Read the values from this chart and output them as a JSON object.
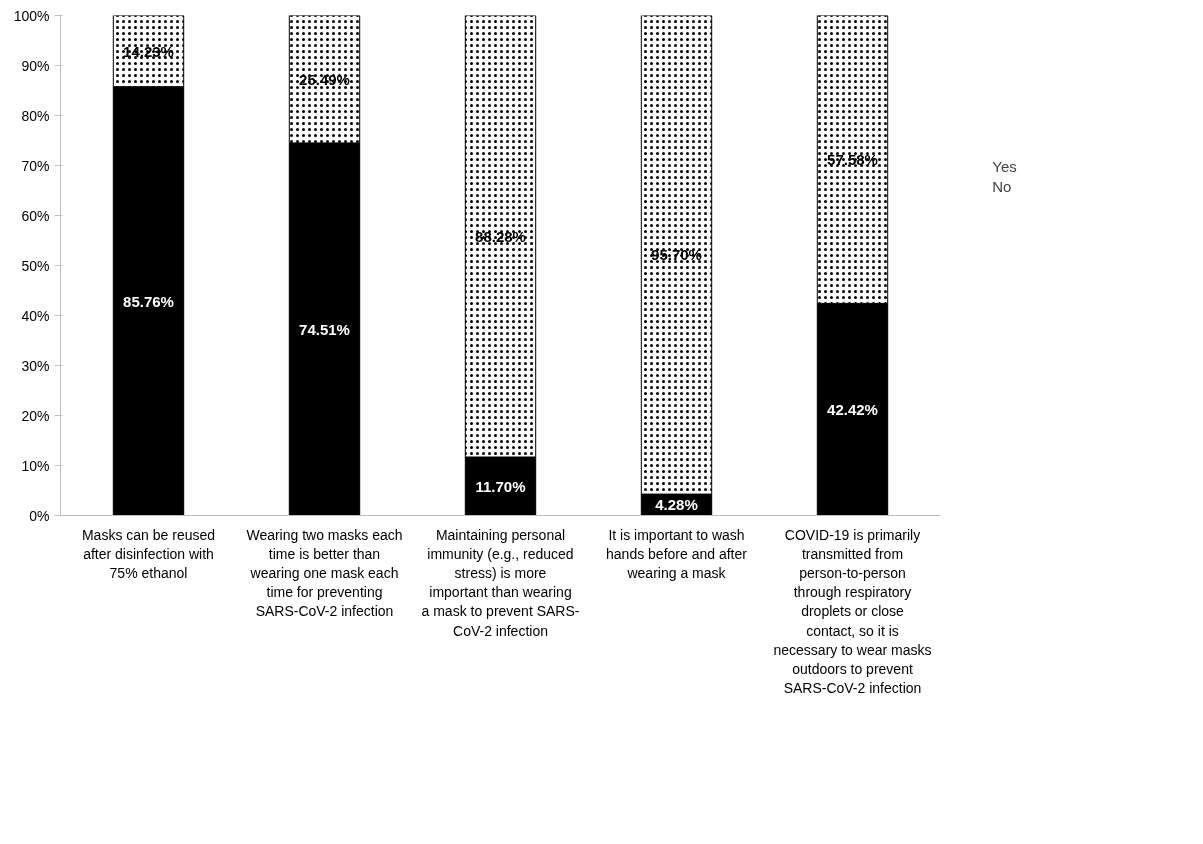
{
  "chart_data": {
    "type": "bar",
    "stacked": true,
    "data_labels": true,
    "legend": "right",
    "grid": false,
    "categories": [
      "Masks can be reused after disinfection with 75% ethanol",
      "Wearing two masks each time is better than wearing one mask each time for preventing SARS-CoV-2 infection",
      "Maintaining personal immunity (e.g., reduced stress) is more important than wearing a mask to prevent SARS-CoV-2 infection",
      "It is important to wash hands before and after wearing a mask",
      "COVID-19 is primarily transmitted from person-to-person through respiratory droplets or close contact, so it is necessary to wear masks outdoors to prevent SARS-CoV-2 infection"
    ],
    "series": [
      {
        "name": "No",
        "color": "#000000",
        "values": [
          85.76,
          74.51,
          11.7,
          4.28,
          42.42
        ],
        "value_labels": [
          "85.76%",
          "74.51%",
          "11.70%",
          "4.28%",
          "42.42%"
        ]
      },
      {
        "name": "Yes",
        "color": "#ffffff",
        "values": [
          14.23,
          25.49,
          88.28,
          95.7,
          57.58
        ],
        "value_labels": [
          "14.23%",
          "25.49%",
          "88.28%",
          "95.70%",
          "57.58%"
        ]
      }
    ],
    "ylim": [
      0,
      100
    ],
    "yticks": [
      {
        "value": 0,
        "label": "0%"
      },
      {
        "value": 10,
        "label": "10%"
      },
      {
        "value": 20,
        "label": "20%"
      },
      {
        "value": 30,
        "label": "30%"
      },
      {
        "value": 40,
        "label": "40%"
      },
      {
        "value": 50,
        "label": "50%"
      },
      {
        "value": 60,
        "label": "60%"
      },
      {
        "value": 70,
        "label": "70%"
      },
      {
        "value": 80,
        "label": "80%"
      },
      {
        "value": 90,
        "label": "90%"
      },
      {
        "value": 100,
        "label": "100%"
      }
    ]
  }
}
